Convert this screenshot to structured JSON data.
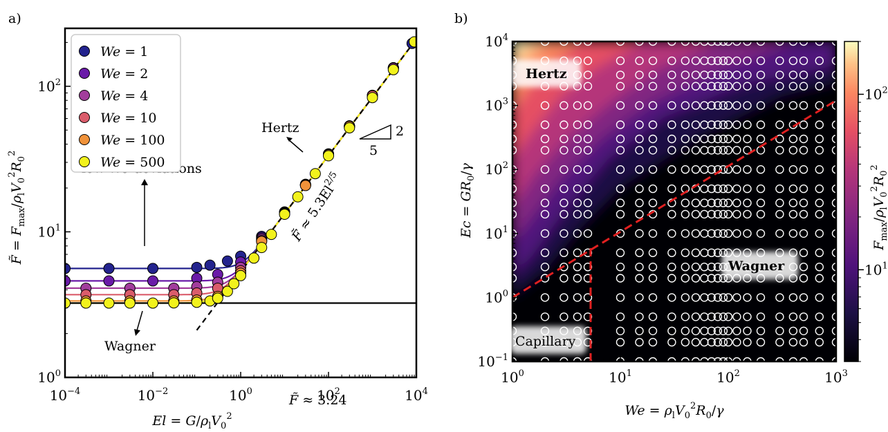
{
  "chart_data": [
    {
      "panel_label": "a)",
      "type": "scatter",
      "xlabel": "El = G/ρlV0²",
      "ylabel": "F̃ = Fmax/ρlV0²R0²",
      "x_scale": "log",
      "y_scale": "log",
      "xlim": [
        0.0001,
        10000
      ],
      "ylim": [
        1,
        250
      ],
      "x_ticks": [
        {
          "value": 0.0001,
          "label": "10",
          "exp": "−4"
        },
        {
          "value": 0.01,
          "label": "10",
          "exp": "−2"
        },
        {
          "value": 1,
          "label": "10",
          "exp": "0"
        },
        {
          "value": 100,
          "label": "10",
          "exp": "2"
        },
        {
          "value": 10000,
          "label": "10",
          "exp": "4"
        }
      ],
      "y_ticks": [
        {
          "value": 1,
          "label": "10",
          "exp": "0"
        },
        {
          "value": 10,
          "label": "10",
          "exp": "1"
        },
        {
          "value": 100,
          "label": "10",
          "exp": "2"
        }
      ],
      "legend_position": "top-left",
      "series": [
        {
          "name": "We = 1",
          "color": "#23238e",
          "plateau": 5.6,
          "x": [
            0.0001,
            0.001,
            0.01,
            0.1,
            0.2,
            0.5,
            1,
            3,
            10,
            30,
            100,
            300,
            1000,
            3000,
            8000
          ],
          "y": [
            5.6,
            5.6,
            5.6,
            5.7,
            5.9,
            6.3,
            6.8,
            9.3,
            13.7,
            21.2,
            34.3,
            53.5,
            86.7,
            134,
            197
          ]
        },
        {
          "name": "We = 2",
          "color": "#6a1aa8",
          "plateau": 4.6,
          "x": [
            0.0001,
            0.001,
            0.01,
            0.1,
            0.3,
            1,
            3,
            10,
            30,
            100,
            300,
            1000,
            3000
          ],
          "y": [
            4.6,
            4.6,
            4.6,
            4.8,
            5.1,
            6.2,
            9.1,
            13.6,
            21.0,
            34.1,
            53.0,
            86.3,
            134
          ]
        },
        {
          "name": "We = 4",
          "color": "#a23d9c",
          "plateau": 4.1,
          "x": [
            0.0003,
            0.003,
            0.03,
            0.1,
            0.3,
            1,
            3,
            10,
            30,
            100,
            300,
            1000,
            3000
          ],
          "y": [
            4.1,
            4.1,
            4.1,
            4.2,
            4.5,
            5.7,
            8.9,
            13.5,
            21.0,
            34.0,
            53.0,
            86.0,
            133
          ]
        },
        {
          "name": "We = 10",
          "color": "#da5c6b",
          "plateau": 3.7,
          "x": [
            0.0003,
            0.003,
            0.03,
            0.1,
            0.3,
            1,
            3,
            10,
            30,
            100,
            300,
            1000
          ],
          "y": [
            3.7,
            3.7,
            3.7,
            3.8,
            4.1,
            5.4,
            8.7,
            13.4,
            20.9,
            33.9,
            53.0,
            86.0
          ]
        },
        {
          "name": "We = 100",
          "color": "#f0923a",
          "plateau": 3.35,
          "x": [
            0.0003,
            0.003,
            0.03,
            0.1,
            0.3,
            1,
            3,
            10,
            30,
            100,
            300
          ],
          "y": [
            3.35,
            3.35,
            3.35,
            3.4,
            3.6,
            5.2,
            8.6,
            13.3,
            20.8,
            33.8,
            52.9
          ]
        },
        {
          "name": "We = 500",
          "color": "#f2f21c",
          "plateau": 3.24,
          "x": [
            0.0001,
            0.0003,
            0.001,
            0.003,
            0.01,
            0.03,
            0.1,
            0.2,
            0.3,
            0.5,
            0.7,
            1,
            2,
            3,
            5,
            10,
            20,
            50,
            100,
            300,
            1000,
            3000,
            9000
          ],
          "y": [
            3.24,
            3.24,
            3.24,
            3.24,
            3.24,
            3.25,
            3.28,
            3.35,
            3.5,
            3.9,
            4.4,
            5.0,
            6.6,
            7.8,
            9.6,
            13.2,
            17.4,
            25.1,
            33.3,
            51.8,
            83.6,
            130,
            202
          ]
        }
      ],
      "reference_lines": [
        {
          "label": "F̃ ≈ 3.24",
          "value": 3.24
        },
        {
          "label": "F̃ ≈ 5.3El^2/5",
          "coefficient": 5.3,
          "exponent": 0.4
        }
      ],
      "slope_triangle": {
        "rise": "2",
        "run": "5"
      },
      "annotations": [
        "Hertz",
        "low We deviations",
        "Wagner"
      ]
    },
    {
      "panel_label": "b)",
      "type": "heatmap",
      "xlabel": "We = ρlV0²R0/γ",
      "ylabel": "Ec = GR0/γ",
      "colorbar_label": "Fmax/ρlV0²R0²",
      "x_scale": "log",
      "y_scale": "log",
      "xlim": [
        1,
        1000
      ],
      "ylim": [
        0.1,
        10000
      ],
      "x_ticks": [
        {
          "value": 1,
          "label": "10",
          "exp": "0"
        },
        {
          "value": 10,
          "label": "10",
          "exp": "1"
        },
        {
          "value": 100,
          "label": "10",
          "exp": "2"
        },
        {
          "value": 1000,
          "label": "10",
          "exp": "3"
        }
      ],
      "y_ticks": [
        {
          "value": 0.1,
          "label": "10",
          "exp": "−1"
        },
        {
          "value": 1,
          "label": "10",
          "exp": "0"
        },
        {
          "value": 10,
          "label": "10",
          "exp": "1"
        },
        {
          "value": 100,
          "label": "10",
          "exp": "2"
        },
        {
          "value": 1000,
          "label": "10",
          "exp": "3"
        },
        {
          "value": 10000,
          "label": "10",
          "exp": "4"
        }
      ],
      "colorbar_ticks": [
        {
          "value": 10,
          "label": "10",
          "exp": "1"
        },
        {
          "value": 100,
          "label": "10",
          "exp": "2"
        }
      ],
      "colorbar_range": [
        3,
        200
      ],
      "regions": [
        "Hertz",
        "Wagner",
        "Capillary"
      ],
      "boundaries": [
        {
          "type": "line",
          "points": [
            [
              1,
              1.0
            ],
            [
              1000,
              1200
            ]
          ]
        },
        {
          "type": "vertical",
          "points": [
            [
              5.3,
              0.1
            ],
            [
              5.3,
              6
            ]
          ]
        }
      ],
      "simulation_points": {
        "We": [
          1,
          2,
          3,
          4,
          5,
          10,
          15,
          20,
          30,
          40,
          50,
          60,
          70,
          80,
          90,
          100,
          120,
          150,
          200,
          300,
          400,
          500,
          700,
          1000
        ],
        "Ec": [
          0.1,
          0.2,
          0.3,
          0.5,
          1,
          2,
          3,
          5,
          10,
          20,
          30,
          50,
          100,
          200,
          300,
          500,
          1000,
          2000,
          3000,
          5000,
          10000
        ]
      }
    }
  ]
}
